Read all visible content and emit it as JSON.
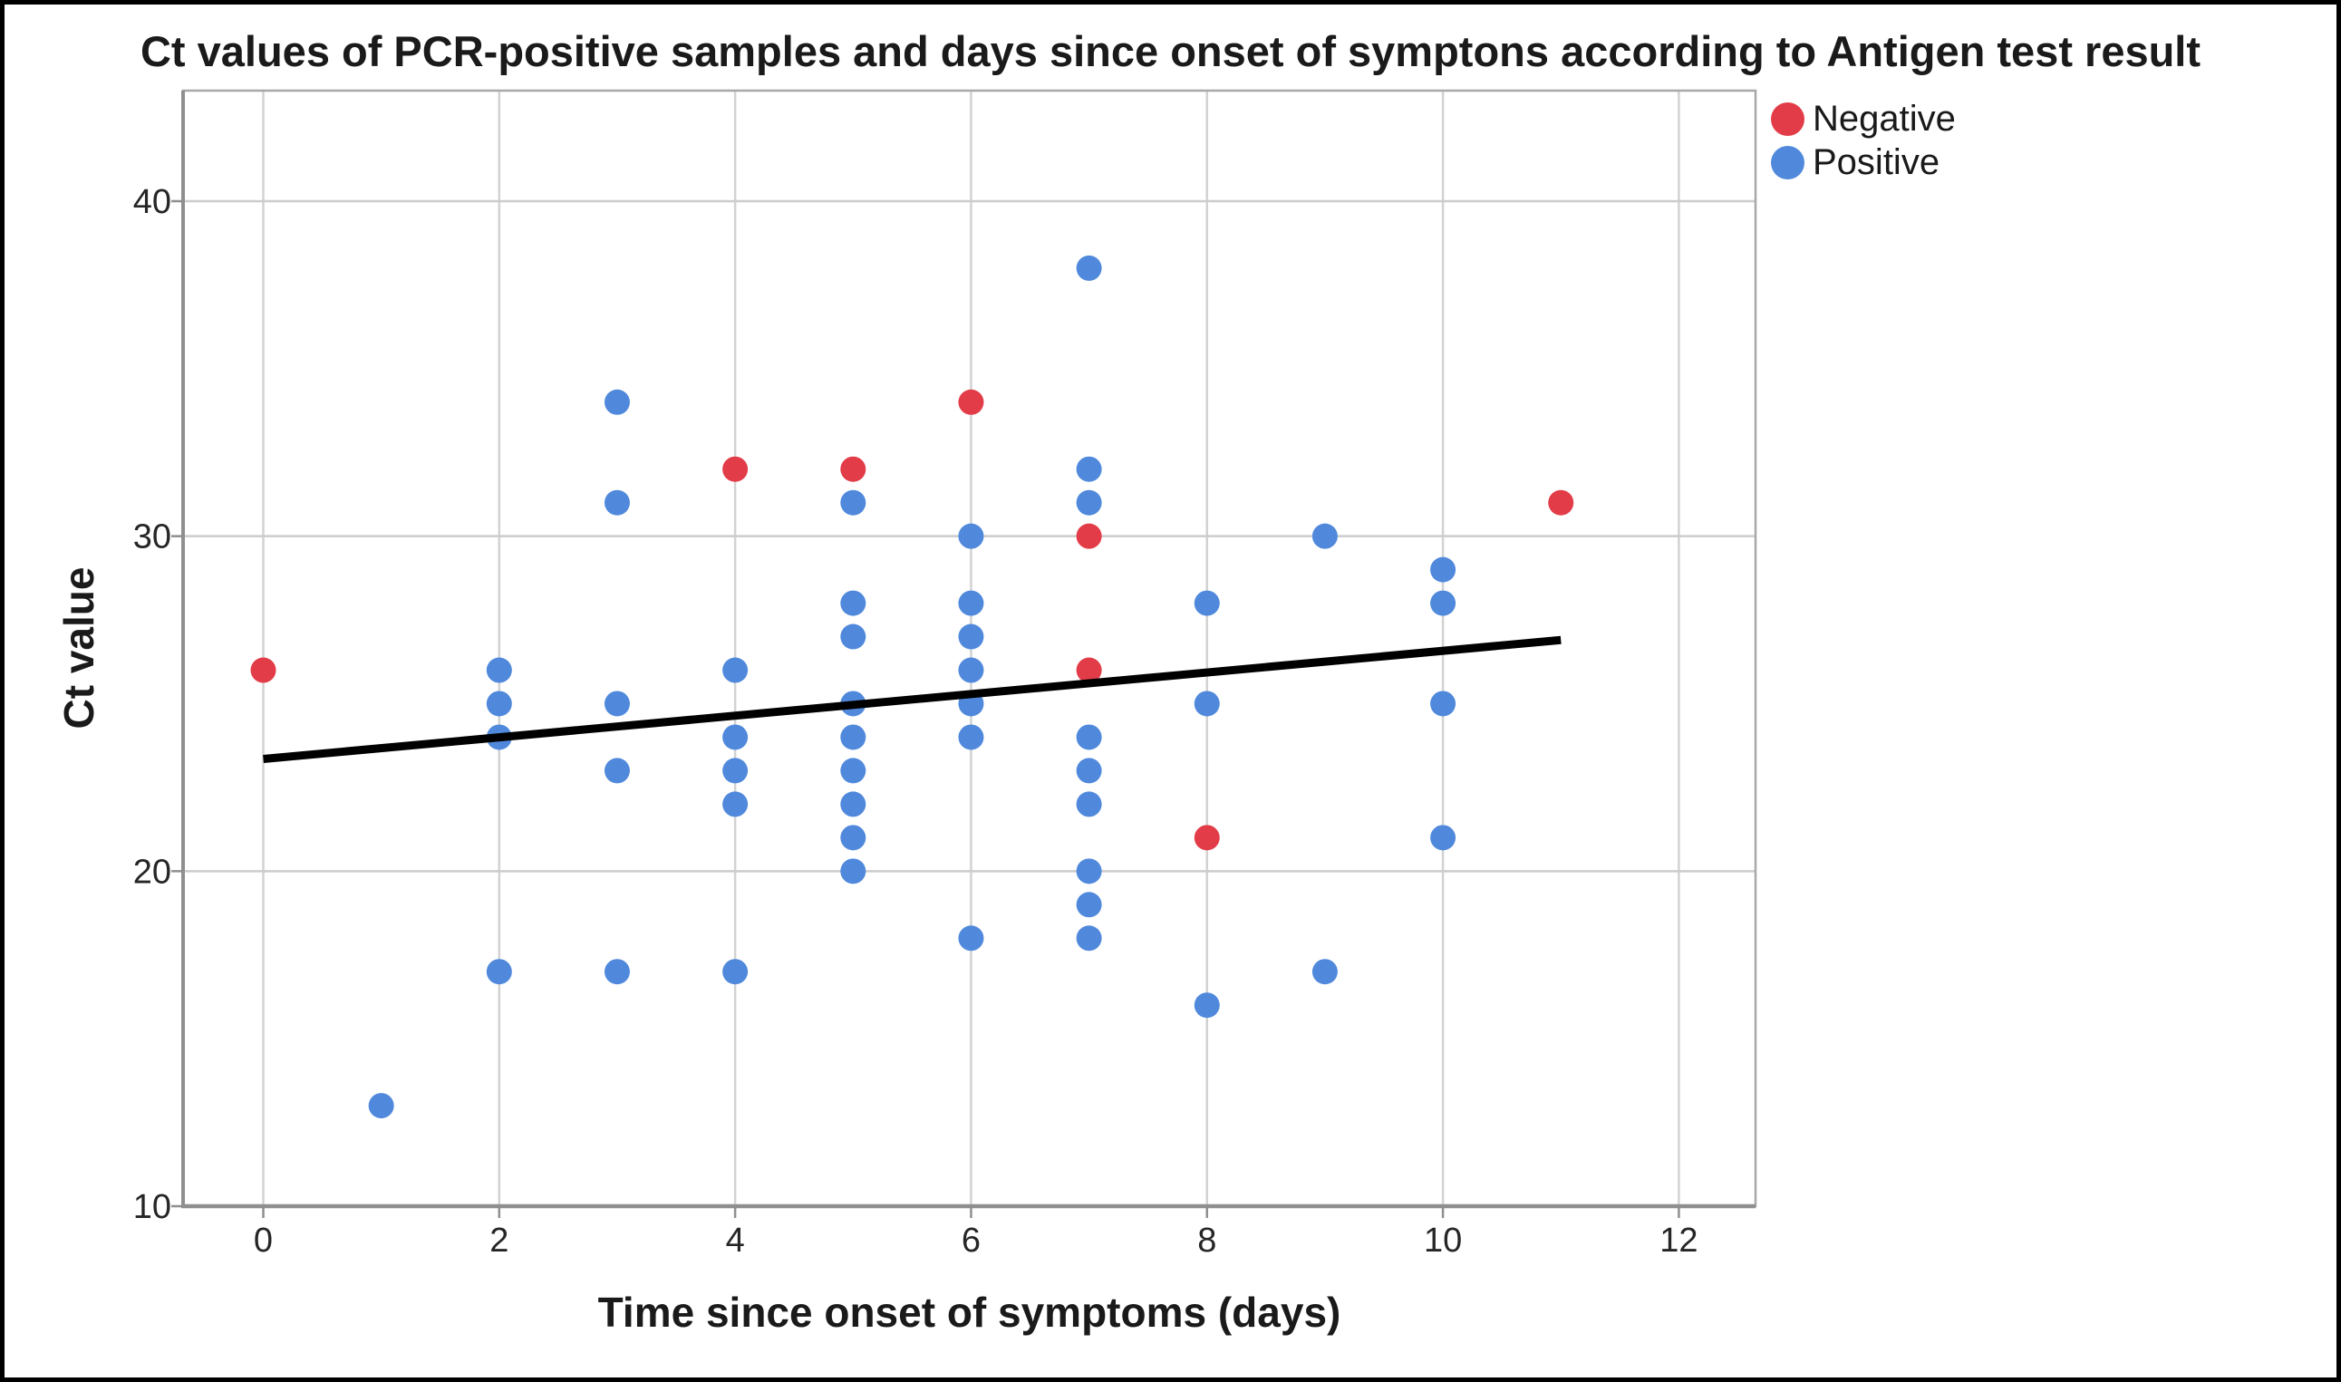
{
  "title": "Ct values of PCR-positive samples and days since onset of symptons according to Antigen test result",
  "chart_data": {
    "type": "scatter",
    "title": "Ct values of PCR-positive samples and days since onset of symptons according to Antigen test result",
    "xlabel": "Time since onset of symptoms (days)",
    "ylabel": "Ct value",
    "x_ticks": [
      0,
      2,
      4,
      6,
      8,
      10,
      12
    ],
    "y_ticks": [
      10,
      20,
      30,
      40
    ],
    "xlim": [
      -0.68,
      12.65
    ],
    "ylim": [
      10,
      43.3
    ],
    "grid": true,
    "legend_position": "top-right",
    "series": [
      {
        "name": "Negative",
        "color": "#e23c48",
        "points": [
          [
            0,
            26
          ],
          [
            4,
            32
          ],
          [
            5,
            32
          ],
          [
            6,
            34
          ],
          [
            7,
            30
          ],
          [
            7,
            26
          ],
          [
            8,
            21
          ],
          [
            11,
            31
          ]
        ]
      },
      {
        "name": "Positive",
        "color": "#5089dc",
        "points": [
          [
            1,
            13
          ],
          [
            2,
            26
          ],
          [
            2,
            25
          ],
          [
            2,
            24
          ],
          [
            2,
            17
          ],
          [
            3,
            34
          ],
          [
            3,
            31
          ],
          [
            3,
            25
          ],
          [
            3,
            23
          ],
          [
            3,
            17
          ],
          [
            4,
            26
          ],
          [
            4,
            24
          ],
          [
            4,
            23
          ],
          [
            4,
            22
          ],
          [
            4,
            17
          ],
          [
            5,
            31
          ],
          [
            5,
            28
          ],
          [
            5,
            27
          ],
          [
            5,
            25
          ],
          [
            5,
            24
          ],
          [
            5,
            23
          ],
          [
            5,
            22
          ],
          [
            5,
            21
          ],
          [
            5,
            20
          ],
          [
            6,
            30
          ],
          [
            6,
            28
          ],
          [
            6,
            27
          ],
          [
            6,
            26
          ],
          [
            6,
            25
          ],
          [
            6,
            24
          ],
          [
            6,
            18
          ],
          [
            7,
            38
          ],
          [
            7,
            32
          ],
          [
            7,
            31
          ],
          [
            7,
            24
          ],
          [
            7,
            23
          ],
          [
            7,
            22
          ],
          [
            7,
            20
          ],
          [
            7,
            19
          ],
          [
            7,
            18
          ],
          [
            8,
            28
          ],
          [
            8,
            25
          ],
          [
            8,
            16
          ],
          [
            9,
            30
          ],
          [
            9,
            17
          ],
          [
            10,
            29
          ],
          [
            10,
            28
          ],
          [
            10,
            25
          ],
          [
            10,
            21
          ]
        ]
      }
    ],
    "trend_line": {
      "from": [
        0,
        23.35
      ],
      "to": [
        11,
        26.9
      ],
      "color": "#000000"
    }
  },
  "legend": {
    "items": [
      {
        "label": "Negative",
        "color": "#e23c48"
      },
      {
        "label": "Positive",
        "color": "#5089dc"
      }
    ]
  }
}
